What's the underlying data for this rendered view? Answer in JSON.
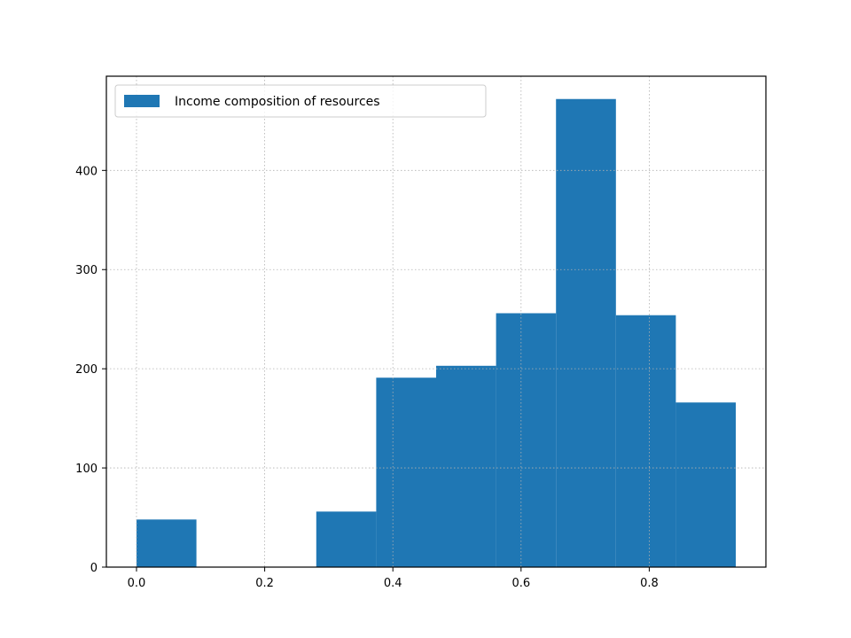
{
  "chart_data": {
    "type": "bar",
    "histogram": true,
    "bin_edges": [
      0.0,
      0.0935,
      0.187,
      0.2805,
      0.374,
      0.4675,
      0.561,
      0.6545,
      0.748,
      0.8415,
      0.935
    ],
    "series": [
      {
        "name": "Income composition of resources",
        "values": [
          48,
          0,
          0,
          56,
          191,
          203,
          256,
          472,
          254,
          166
        ]
      }
    ],
    "xlim": [
      -0.047,
      0.982
    ],
    "ylim": [
      0,
      495
    ],
    "xticks": [
      0.0,
      0.2,
      0.4,
      0.6,
      0.8
    ],
    "xtick_labels": [
      "0.0",
      "0.2",
      "0.4",
      "0.6",
      "0.8"
    ],
    "yticks": [
      0,
      100,
      200,
      300,
      400
    ],
    "ytick_labels": [
      "0",
      "100",
      "200",
      "300",
      "400"
    ],
    "grid": true,
    "grid_style": "dotted",
    "legend_position": "upper-left",
    "title": "",
    "xlabel": "",
    "ylabel": ""
  },
  "colors": {
    "bar": "#1f77b4",
    "grid": "#b0b0b0",
    "axis": "#000000",
    "background": "#ffffff",
    "legend_border": "#cccccc"
  }
}
